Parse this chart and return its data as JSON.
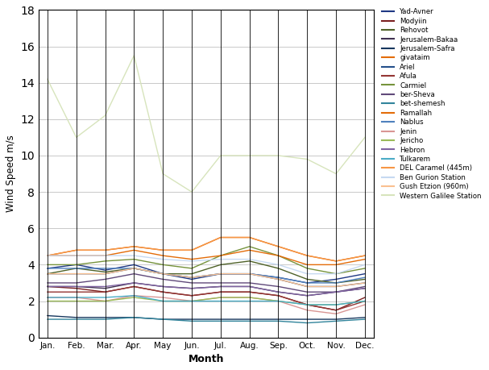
{
  "months": [
    "Jan.",
    "Feb.",
    "Mar.",
    "Apr.",
    "May",
    "Jun.",
    "Jul.",
    "Aug.",
    "Sep.",
    "Oct.",
    "Nov.",
    "Dec."
  ],
  "series": {
    "Yad-Avner": [
      3.8,
      4.0,
      3.7,
      4.0,
      3.5,
      3.2,
      3.5,
      3.5,
      3.3,
      3.0,
      3.2,
      3.5
    ],
    "Modyiin": [
      2.8,
      2.7,
      2.5,
      2.8,
      2.5,
      2.3,
      2.5,
      2.5,
      2.3,
      1.8,
      1.5,
      2.2
    ],
    "Rehovot": [
      3.5,
      3.8,
      3.6,
      3.8,
      3.5,
      3.5,
      4.0,
      4.2,
      3.8,
      3.2,
      3.0,
      3.2
    ],
    "Jerusalem-Bakaa": [
      2.8,
      2.8,
      2.7,
      3.0,
      2.8,
      2.7,
      2.8,
      2.8,
      2.5,
      2.3,
      2.5,
      2.7
    ],
    "Jerusalem-Safra": [
      1.2,
      1.1,
      1.1,
      1.1,
      1.0,
      1.0,
      1.0,
      1.0,
      1.0,
      1.0,
      1.0,
      1.1
    ],
    "givataim": [
      4.5,
      4.8,
      4.8,
      5.0,
      4.8,
      4.8,
      5.5,
      5.5,
      5.0,
      4.5,
      4.2,
      4.5
    ],
    "Ariel": [
      3.5,
      3.5,
      3.5,
      3.8,
      3.5,
      3.3,
      3.5,
      3.5,
      3.2,
      2.8,
      2.8,
      3.0
    ],
    "Afula": [
      2.5,
      2.5,
      2.5,
      2.8,
      2.5,
      2.3,
      2.5,
      2.5,
      2.3,
      1.8,
      1.5,
      2.0
    ],
    "Carmiel": [
      4.0,
      4.0,
      4.2,
      4.3,
      4.0,
      3.8,
      4.5,
      5.0,
      4.5,
      3.8,
      3.5,
      3.8
    ],
    "ber-Sheva": [
      3.0,
      3.0,
      3.2,
      3.5,
      3.2,
      3.0,
      3.0,
      3.0,
      2.8,
      2.5,
      2.5,
      2.8
    ],
    "bet-shemesh": [
      1.0,
      1.0,
      1.0,
      1.1,
      1.0,
      0.9,
      0.9,
      0.9,
      0.9,
      0.8,
      0.9,
      1.0
    ],
    "Ramallah": [
      4.5,
      4.5,
      4.5,
      4.8,
      4.5,
      4.3,
      4.5,
      4.8,
      4.5,
      4.0,
      4.0,
      4.3
    ],
    "Nablus": [
      3.8,
      3.8,
      3.8,
      3.8,
      3.5,
      3.3,
      3.5,
      3.5,
      3.3,
      3.0,
      3.0,
      3.3
    ],
    "Jenin": [
      2.2,
      2.2,
      2.0,
      2.3,
      2.2,
      2.0,
      2.2,
      2.2,
      2.0,
      1.5,
      1.3,
      1.8
    ],
    "Jericho": [
      2.0,
      2.0,
      2.0,
      2.2,
      2.0,
      2.0,
      2.2,
      2.2,
      2.0,
      1.8,
      1.8,
      2.0
    ],
    "Hebron": [
      2.8,
      2.8,
      2.8,
      3.0,
      2.8,
      2.7,
      2.8,
      2.8,
      2.5,
      2.3,
      2.5,
      2.7
    ],
    "Tulkarem": [
      2.2,
      2.2,
      2.2,
      2.3,
      2.0,
      2.0,
      2.0,
      2.0,
      2.0,
      1.8,
      1.8,
      2.0
    ],
    "DEL Caramel (445m)": [
      4.5,
      4.8,
      4.8,
      5.0,
      4.8,
      4.8,
      5.5,
      5.5,
      5.0,
      4.5,
      4.2,
      4.5
    ],
    "Ben Gurion Station": [
      4.5,
      4.5,
      4.5,
      4.5,
      4.3,
      4.2,
      4.3,
      4.3,
      4.0,
      3.5,
      3.5,
      4.0
    ],
    "Gush Etzion (960m)": [
      3.5,
      3.5,
      3.5,
      3.8,
      3.5,
      3.3,
      3.5,
      3.5,
      3.2,
      2.8,
      2.8,
      3.0
    ],
    "Western Galilee Station": [
      14.2,
      11.0,
      12.2,
      15.5,
      9.0,
      8.0,
      10.0,
      10.0,
      10.0,
      9.8,
      9.0,
      11.0
    ]
  },
  "colors": {
    "Yad-Avner": "#1F3884",
    "Modyiin": "#7B2020",
    "Rehovot": "#4F6228",
    "Jerusalem-Bakaa": "#403151",
    "Jerusalem-Safra": "#17375E",
    "givataim": "#E36C09",
    "Ariel": "#244F8B",
    "Afula": "#943634",
    "Carmiel": "#76933C",
    "ber-Sheva": "#60497A",
    "bet-shemesh": "#31849B",
    "Ramallah": "#E36C09",
    "Nablus": "#4F81BD",
    "Jenin": "#D99694",
    "Jericho": "#9BBB59",
    "Hebron": "#8064A2",
    "Tulkarem": "#4BACC6",
    "DEL Caramel (445m)": "#F79646",
    "Ben Gurion Station": "#C6D9F1",
    "Gush Etzion (960m)": "#FAC090",
    "Western Galilee Station": "#D7E4BC"
  },
  "ylabel": "Wind Speed m/s",
  "xlabel": "Month",
  "ylim": [
    0,
    18
  ],
  "yticks": [
    0,
    2,
    4,
    6,
    8,
    10,
    12,
    14,
    16,
    18
  ],
  "figsize": [
    6.07,
    4.59
  ],
  "dpi": 100
}
